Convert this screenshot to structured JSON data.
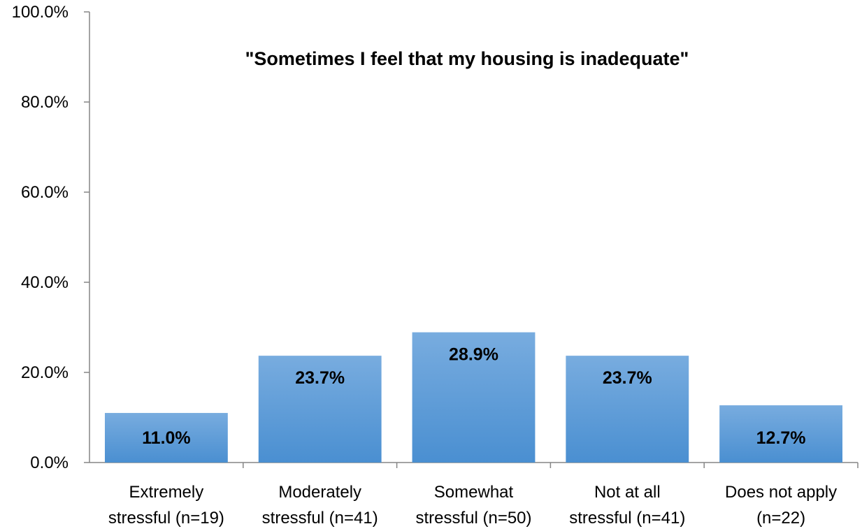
{
  "chart_data": {
    "type": "bar",
    "title": "\"Sometimes I feel that my housing is inadequate\"",
    "categories": [
      [
        "Extremely",
        "stressful (n=19)"
      ],
      [
        "Moderately",
        "stressful (n=41)"
      ],
      [
        "Somewhat",
        "stressful (n=50)"
      ],
      [
        "Not at all",
        "stressful (n=41)"
      ],
      [
        "Does not apply",
        "(n=22)"
      ]
    ],
    "values": [
      11.0,
      23.7,
      28.9,
      23.7,
      12.7
    ],
    "value_labels": [
      "11.0%",
      "23.7%",
      "28.9%",
      "23.7%",
      "12.7%"
    ],
    "ylim": [
      0,
      100
    ],
    "yticks": [
      0,
      20,
      40,
      60,
      80,
      100
    ],
    "ytick_labels": [
      "0.0%",
      "20.0%",
      "40.0%",
      "60.0%",
      "80.0%",
      "100.0%"
    ],
    "bar_color_top": "#78acdf",
    "bar_color_bottom": "#4a8fd1",
    "axis_color": "#868686",
    "grid": false,
    "legend": "none"
  }
}
